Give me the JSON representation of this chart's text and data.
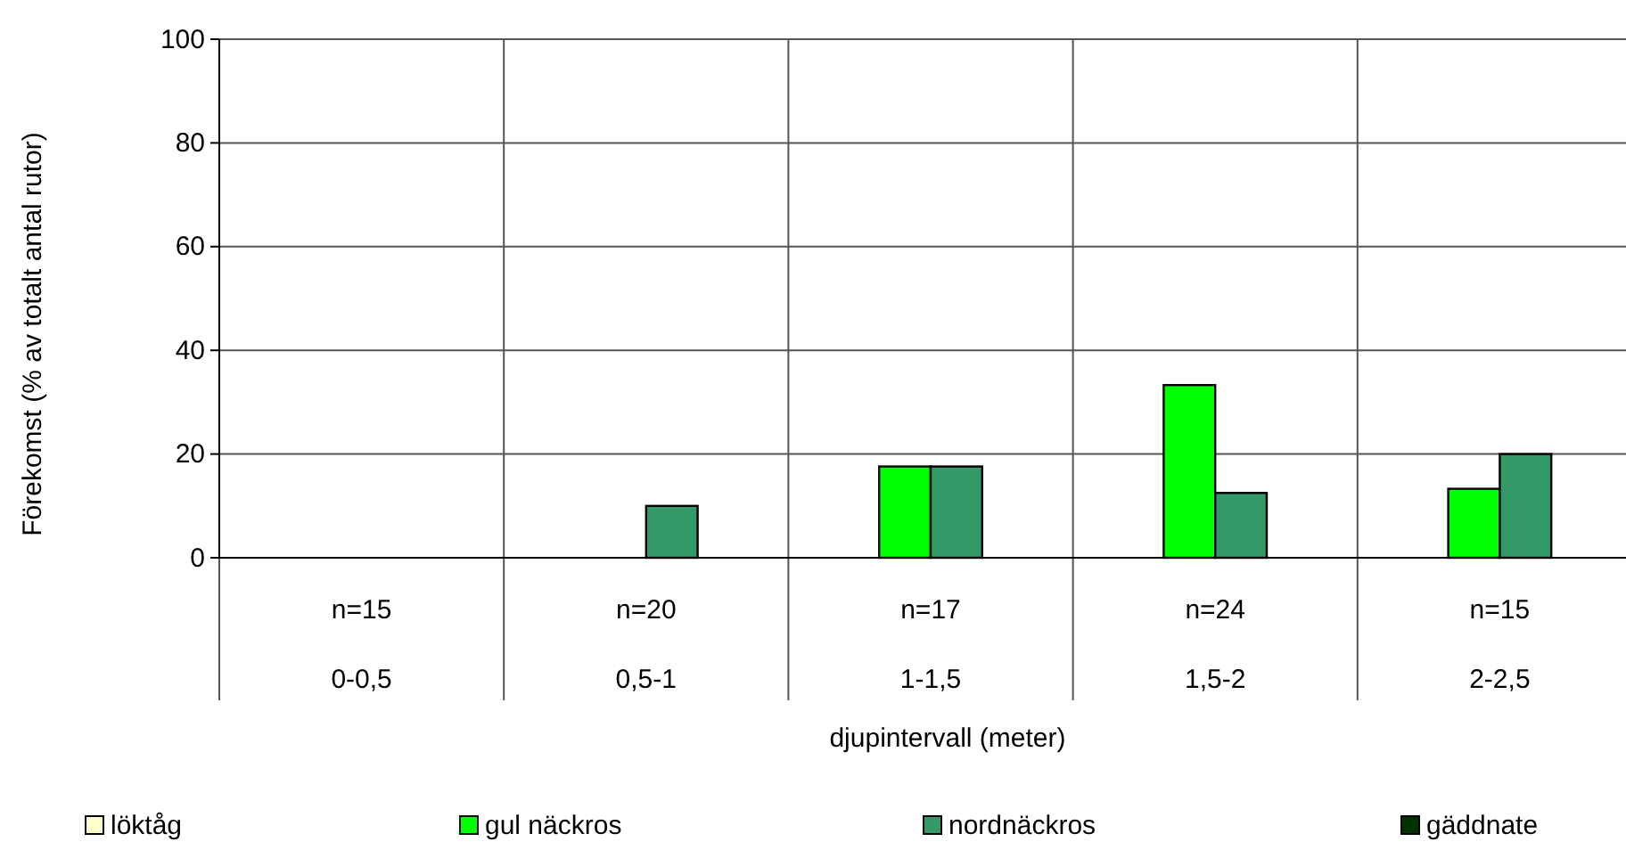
{
  "chart_data": {
    "type": "bar",
    "xlabel": "djupintervall (meter)",
    "ylabel": "Förekomst (% av totalt antal rutor)",
    "categories": [
      "0-0,5",
      "0,5-1",
      "1-1,5",
      "1,5-2",
      "2-2,5"
    ],
    "series": [
      {
        "name": "löktåg",
        "color": "#ffffcc",
        "values": [
          0,
          0,
          0,
          0,
          0
        ]
      },
      {
        "name": "gul näckros",
        "color": "#00ff00",
        "values": [
          0,
          0,
          17.6,
          33.3,
          13.3
        ]
      },
      {
        "name": "nordnäckros",
        "color": "#339966",
        "values": [
          0,
          10,
          17.6,
          12.5,
          20
        ]
      },
      {
        "name": "gäddnate",
        "color": "#003300",
        "values": [
          0,
          0,
          0,
          0,
          0
        ]
      }
    ],
    "ylim": [
      0,
      100
    ],
    "yticks": [
      0,
      20,
      40,
      60,
      80,
      100
    ],
    "grid": true,
    "legend": "bottom",
    "annotations": [
      "n=15",
      "n=20",
      "n=17",
      "n=24",
      "n=15"
    ]
  }
}
